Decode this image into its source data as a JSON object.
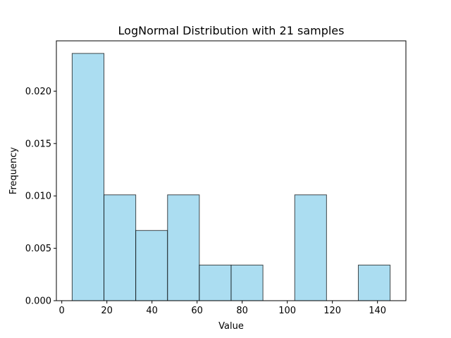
{
  "chart_data": {
    "type": "bar",
    "title": "LogNormal Distribution with 21 samples",
    "xlabel": "Value",
    "ylabel": "Frequency",
    "bins": [
      {
        "start": 4.6,
        "end": 18.7,
        "value": 0.0236
      },
      {
        "start": 18.7,
        "end": 32.8,
        "value": 0.0101
      },
      {
        "start": 32.8,
        "end": 46.9,
        "value": 0.0067
      },
      {
        "start": 46.9,
        "end": 61.0,
        "value": 0.0101
      },
      {
        "start": 61.0,
        "end": 75.1,
        "value": 0.0034
      },
      {
        "start": 75.1,
        "end": 89.2,
        "value": 0.0034
      },
      {
        "start": 89.2,
        "end": 103.3,
        "value": 0.0
      },
      {
        "start": 103.3,
        "end": 117.4,
        "value": 0.0101
      },
      {
        "start": 117.4,
        "end": 131.5,
        "value": 0.0
      },
      {
        "start": 131.5,
        "end": 145.6,
        "value": 0.0034
      }
    ],
    "xlim": [
      -2.4,
      152.6
    ],
    "ylim": [
      0,
      0.0248
    ],
    "x_ticks": [
      0,
      20,
      40,
      60,
      80,
      100,
      120,
      140
    ],
    "y_ticks": [
      0.0,
      0.005,
      0.01,
      0.015,
      0.02
    ],
    "x_tick_labels": [
      "0",
      "20",
      "40",
      "60",
      "80",
      "100",
      "120",
      "140"
    ],
    "y_tick_labels": [
      "0.000",
      "0.005",
      "0.010",
      "0.015",
      "0.020"
    ],
    "grid": false,
    "colors": {
      "bar_fill": "#87ceeb",
      "bar_edge": "#000000"
    }
  }
}
